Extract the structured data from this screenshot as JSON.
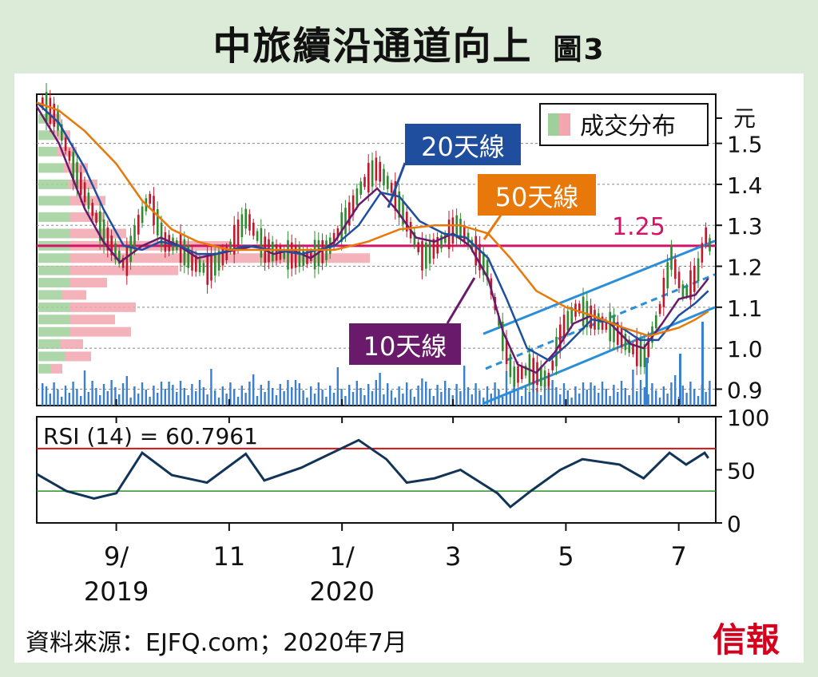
{
  "title": "中旅續沿通道向上",
  "figure_label": "圖3",
  "source": "資料來源：EJFQ.com；2020年7月",
  "logo": "信報",
  "colors": {
    "background": "#dcebd8",
    "price_up": "#2e8b2e",
    "price_down": "#c0182c",
    "ma10": "#6a1a6a",
    "ma20": "#1f4e9e",
    "ma50": "#e8780a",
    "resistance": "#d21469",
    "channel": "#2a8fd8",
    "volume": "#3a7fd0",
    "rsi_line": "#123456",
    "rsi_upper": "#d21414",
    "rsi_lower": "#2a8f2a"
  },
  "chart_data": [
    {
      "type": "line",
      "legend": "成交分布",
      "y_unit": "元",
      "ylim": [
        0.86,
        1.62
      ],
      "y_ticks": [
        "0.9",
        "1.0",
        "1.1",
        "1.2",
        "1.3",
        "1.4",
        "1.5"
      ],
      "grid": true,
      "resistance": {
        "value": 1.25,
        "label": "1.25"
      },
      "series": [
        {
          "name": "10天線",
          "points": [
            [
              "2019-07-20",
              1.59
            ],
            [
              "2019-08-01",
              1.5
            ],
            [
              "2019-08-15",
              1.34
            ],
            [
              "2019-08-25",
              1.26
            ],
            [
              "2019-09-03",
              1.21
            ],
            [
              "2019-09-15",
              1.25
            ],
            [
              "2019-09-25",
              1.27
            ],
            [
              "2019-10-05",
              1.25
            ],
            [
              "2019-10-15",
              1.22
            ],
            [
              "2019-10-25",
              1.23
            ],
            [
              "2019-11-05",
              1.24
            ],
            [
              "2019-11-15",
              1.25
            ],
            [
              "2019-11-25",
              1.23
            ],
            [
              "2019-12-05",
              1.24
            ],
            [
              "2019-12-15",
              1.22
            ],
            [
              "2019-12-28",
              1.26
            ],
            [
              "2020-01-10",
              1.35
            ],
            [
              "2020-01-20",
              1.39
            ],
            [
              "2020-01-30",
              1.34
            ],
            [
              "2020-02-10",
              1.27
            ],
            [
              "2020-02-20",
              1.26
            ],
            [
              "2020-03-01",
              1.28
            ],
            [
              "2020-03-10",
              1.25
            ],
            [
              "2020-03-20",
              1.17
            ],
            [
              "2020-03-28",
              1.04
            ],
            [
              "2020-04-05",
              0.96
            ],
            [
              "2020-04-15",
              0.94
            ],
            [
              "2020-04-25",
              0.99
            ],
            [
              "2020-05-05",
              1.06
            ],
            [
              "2020-05-15",
              1.08
            ],
            [
              "2020-05-25",
              1.06
            ],
            [
              "2020-06-05",
              1.01
            ],
            [
              "2020-06-12",
              1.0
            ],
            [
              "2020-06-22",
              1.06
            ],
            [
              "2020-07-01",
              1.12
            ],
            [
              "2020-07-10",
              1.13
            ],
            [
              "2020-07-17",
              1.17
            ]
          ]
        },
        {
          "name": "20天線",
          "points": [
            [
              "2019-07-20",
              1.6
            ],
            [
              "2019-08-01",
              1.55
            ],
            [
              "2019-08-15",
              1.44
            ],
            [
              "2019-08-25",
              1.34
            ],
            [
              "2019-09-05",
              1.25
            ],
            [
              "2019-09-15",
              1.24
            ],
            [
              "2019-09-25",
              1.26
            ],
            [
              "2019-10-05",
              1.25
            ],
            [
              "2019-10-15",
              1.23
            ],
            [
              "2019-10-25",
              1.23
            ],
            [
              "2019-11-10",
              1.25
            ],
            [
              "2019-11-25",
              1.24
            ],
            [
              "2019-12-10",
              1.23
            ],
            [
              "2019-12-28",
              1.25
            ],
            [
              "2020-01-10",
              1.3
            ],
            [
              "2020-01-22",
              1.38
            ],
            [
              "2020-02-01",
              1.37
            ],
            [
              "2020-02-12",
              1.31
            ],
            [
              "2020-02-25",
              1.28
            ],
            [
              "2020-03-08",
              1.27
            ],
            [
              "2020-03-20",
              1.22
            ],
            [
              "2020-03-30",
              1.12
            ],
            [
              "2020-04-10",
              1.0
            ],
            [
              "2020-04-22",
              0.97
            ],
            [
              "2020-05-02",
              1.01
            ],
            [
              "2020-05-15",
              1.07
            ],
            [
              "2020-05-28",
              1.06
            ],
            [
              "2020-06-10",
              1.02
            ],
            [
              "2020-06-20",
              1.02
            ],
            [
              "2020-07-01",
              1.08
            ],
            [
              "2020-07-10",
              1.11
            ],
            [
              "2020-07-17",
              1.14
            ]
          ]
        },
        {
          "name": "50天線",
          "points": [
            [
              "2019-07-20",
              1.6
            ],
            [
              "2019-08-01",
              1.58
            ],
            [
              "2019-08-15",
              1.53
            ],
            [
              "2019-09-01",
              1.45
            ],
            [
              "2019-09-15",
              1.36
            ],
            [
              "2019-10-01",
              1.29
            ],
            [
              "2019-10-15",
              1.26
            ],
            [
              "2019-11-01",
              1.24
            ],
            [
              "2019-11-20",
              1.24
            ],
            [
              "2019-12-10",
              1.24
            ],
            [
              "2019-12-28",
              1.24
            ],
            [
              "2020-01-15",
              1.26
            ],
            [
              "2020-02-01",
              1.29
            ],
            [
              "2020-02-20",
              1.3
            ],
            [
              "2020-03-05",
              1.3
            ],
            [
              "2020-03-20",
              1.28
            ],
            [
              "2020-04-01",
              1.22
            ],
            [
              "2020-04-15",
              1.14
            ],
            [
              "2020-05-01",
              1.1
            ],
            [
              "2020-05-15",
              1.08
            ],
            [
              "2020-06-01",
              1.05
            ],
            [
              "2020-06-15",
              1.03
            ],
            [
              "2020-07-01",
              1.05
            ],
            [
              "2020-07-10",
              1.07
            ],
            [
              "2020-07-17",
              1.09
            ]
          ]
        },
        {
          "name": "股價",
          "points": [
            [
              "2019-07-20",
              1.6
            ],
            [
              "2019-07-28",
              1.56
            ],
            [
              "2019-08-05",
              1.45
            ],
            [
              "2019-08-12",
              1.38
            ],
            [
              "2019-08-20",
              1.3
            ],
            [
              "2019-08-28",
              1.24
            ],
            [
              "2019-09-03",
              1.2
            ],
            [
              "2019-09-10",
              1.3
            ],
            [
              "2019-09-16",
              1.37
            ],
            [
              "2019-09-24",
              1.26
            ],
            [
              "2019-10-02",
              1.25
            ],
            [
              "2019-10-10",
              1.21
            ],
            [
              "2019-10-18",
              1.19
            ],
            [
              "2019-10-28",
              1.23
            ],
            [
              "2019-11-08",
              1.32
            ],
            [
              "2019-11-18",
              1.24
            ],
            [
              "2019-11-28",
              1.23
            ],
            [
              "2019-12-10",
              1.22
            ],
            [
              "2019-12-22",
              1.24
            ],
            [
              "2020-01-02",
              1.32
            ],
            [
              "2020-01-10",
              1.4
            ],
            [
              "2020-01-18",
              1.44
            ],
            [
              "2020-01-26",
              1.39
            ],
            [
              "2020-02-04",
              1.3
            ],
            [
              "2020-02-12",
              1.22
            ],
            [
              "2020-02-22",
              1.26
            ],
            [
              "2020-03-02",
              1.3
            ],
            [
              "2020-03-10",
              1.25
            ],
            [
              "2020-03-18",
              1.19
            ],
            [
              "2020-03-25",
              1.05
            ],
            [
              "2020-04-01",
              0.93
            ],
            [
              "2020-04-10",
              0.95
            ],
            [
              "2020-04-20",
              0.92
            ],
            [
              "2020-04-28",
              1.05
            ],
            [
              "2020-05-06",
              1.1
            ],
            [
              "2020-05-15",
              1.07
            ],
            [
              "2020-05-25",
              1.05
            ],
            [
              "2020-06-04",
              1.0
            ],
            [
              "2020-06-12",
              0.98
            ],
            [
              "2020-06-20",
              1.1
            ],
            [
              "2020-06-26",
              1.22
            ],
            [
              "2020-07-03",
              1.13
            ],
            [
              "2020-07-10",
              1.18
            ],
            [
              "2020-07-15",
              1.28
            ],
            [
              "2020-07-17",
              1.25
            ]
          ]
        }
      ],
      "annotations": [
        "10天線",
        "20天線",
        "50天線",
        "1.25"
      ]
    },
    {
      "type": "line",
      "title": "RSI (14) = 60.7961",
      "ylim": [
        0,
        100
      ],
      "y_ticks": [
        "0",
        "50",
        "100"
      ],
      "reference_lines": [
        70,
        30
      ],
      "series": [
        {
          "name": "RSI",
          "points": [
            [
              "2019-07-20",
              46
            ],
            [
              "2019-08-05",
              30
            ],
            [
              "2019-08-20",
              23
            ],
            [
              "2019-09-01",
              28
            ],
            [
              "2019-09-15",
              66
            ],
            [
              "2019-10-01",
              45
            ],
            [
              "2019-10-20",
              38
            ],
            [
              "2019-11-10",
              65
            ],
            [
              "2019-11-20",
              40
            ],
            [
              "2019-12-10",
              52
            ],
            [
              "2020-01-10",
              78
            ],
            [
              "2020-01-25",
              60
            ],
            [
              "2020-02-05",
              38
            ],
            [
              "2020-02-20",
              42
            ],
            [
              "2020-03-05",
              50
            ],
            [
              "2020-03-25",
              28
            ],
            [
              "2020-04-01",
              15
            ],
            [
              "2020-04-12",
              30
            ],
            [
              "2020-04-28",
              50
            ],
            [
              "2020-05-10",
              60
            ],
            [
              "2020-05-30",
              55
            ],
            [
              "2020-06-12",
              42
            ],
            [
              "2020-06-26",
              66
            ],
            [
              "2020-07-05",
              55
            ],
            [
              "2020-07-15",
              66
            ],
            [
              "2020-07-17",
              61
            ]
          ]
        }
      ]
    }
  ],
  "x_axis": {
    "ticks": [
      {
        "date": "2019-09-01",
        "label": "9/",
        "year": "2019"
      },
      {
        "date": "2019-11-01",
        "label": "11",
        "year": ""
      },
      {
        "date": "2020-01-01",
        "label": "1/",
        "year": "2020"
      },
      {
        "date": "2020-03-01",
        "label": "3",
        "year": ""
      },
      {
        "date": "2020-05-01",
        "label": "5",
        "year": ""
      },
      {
        "date": "2020-07-01",
        "label": "7",
        "year": ""
      }
    ]
  }
}
